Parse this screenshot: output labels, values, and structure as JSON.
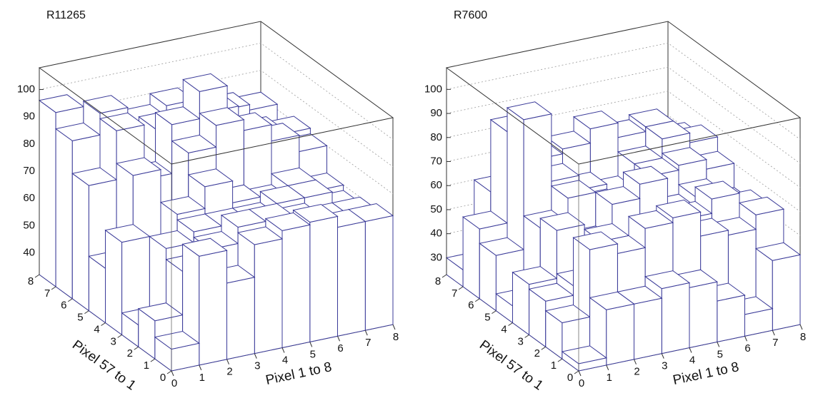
{
  "chart_data": [
    {
      "type": "lego",
      "title": "R11265",
      "x_label": "Pixel 1 to 8",
      "y_label": "Pixel 57 to 1",
      "xlim": [
        0,
        8
      ],
      "ylim": [
        0,
        8
      ],
      "zlim": [
        32,
        108
      ],
      "xticks": [
        0,
        1,
        2,
        3,
        4,
        5,
        6,
        7,
        8
      ],
      "yticks": [
        0,
        1,
        2,
        3,
        4,
        5,
        6,
        7,
        8
      ],
      "zticks": [
        40,
        50,
        60,
        70,
        80,
        90,
        100
      ],
      "color": "#3b3b99",
      "grid": true,
      "values": [
        [
          40,
          72,
          60,
          72,
          75,
          76,
          72,
          72
        ],
        [
          46,
          62,
          68,
          74,
          74,
          72,
          70,
          70
        ],
        [
          40,
          66,
          70,
          70,
          70,
          74,
          74,
          68
        ],
        [
          66,
          60,
          72,
          80,
          72,
          70,
          74,
          70
        ],
        [
          52,
          84,
          64,
          88,
          96,
          92,
          86,
          80
        ],
        [
          78,
          96,
          76,
          94,
          104,
          80,
          84,
          82
        ],
        [
          90,
          98,
          70,
          88,
          86,
          90,
          78,
          76
        ],
        [
          96,
          84,
          80,
          86,
          90,
          88,
          84,
          82
        ]
      ]
    },
    {
      "type": "lego",
      "title": "R7600",
      "x_label": "Pixel 1 to 8",
      "y_label": "Pixel 57 to 1",
      "xlim": [
        0,
        8
      ],
      "ylim": [
        0,
        8
      ],
      "zlim": [
        23,
        109
      ],
      "xticks": [
        0,
        1,
        2,
        3,
        4,
        5,
        6,
        7,
        8
      ],
      "yticks": [
        0,
        1,
        2,
        3,
        4,
        5,
        6,
        7,
        8
      ],
      "zticks": [
        30,
        40,
        50,
        60,
        70,
        80,
        90,
        100
      ],
      "color": "#3b3b99",
      "grid": true,
      "values": [
        [
          26,
          46,
          46,
          50,
          48,
          40,
          32,
          52
        ],
        [
          38,
          66,
          62,
          70,
          72,
          62,
          60,
          66
        ],
        [
          42,
          46,
          62,
          52,
          58,
          64,
          70,
          64
        ],
        [
          44,
          64,
          56,
          70,
          76,
          62,
          66,
          60
        ],
        [
          30,
          60,
          70,
          64,
          60,
          72,
          74,
          70
        ],
        [
          46,
          100,
          72,
          66,
          62,
          72,
          80,
          76
        ],
        [
          52,
          90,
          76,
          78,
          84,
          78,
          80,
          72
        ],
        [
          30,
          60,
          70,
          64,
          62,
          58,
          60,
          54
        ]
      ]
    }
  ]
}
